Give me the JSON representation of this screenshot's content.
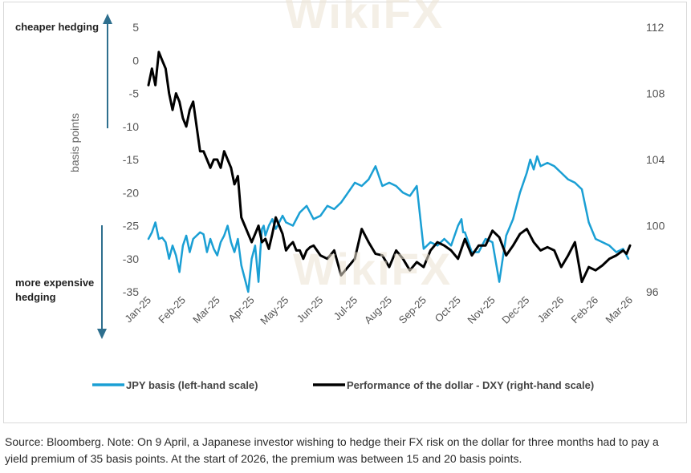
{
  "chart_data": {
    "type": "line",
    "annotations": {
      "top": "cheaper hedging",
      "bottom_line1": "more expensive",
      "bottom_line2": "hedging"
    },
    "ylabel_left": "basis points",
    "left_axis": {
      "min": -35,
      "max": 5,
      "ticks": [
        5,
        0,
        -5,
        -10,
        -15,
        -20,
        -25,
        -30,
        -35
      ]
    },
    "right_axis": {
      "min": 96,
      "max": 112,
      "ticks": [
        112,
        108,
        104,
        100,
        96
      ]
    },
    "x_labels": [
      "Jan-25",
      "Feb-25",
      "Mar-25",
      "Apr-25",
      "May-25",
      "Jun-25",
      "Jul-25",
      "Aug-25",
      "Sep-25",
      "Oct-25",
      "Nov-25",
      "Dec-25",
      "Jan-26",
      "Feb-26",
      "Mar-26"
    ],
    "x_range": [
      0,
      14
    ],
    "series": [
      {
        "name": "JPY basis (left-hand scale)",
        "axis": "left",
        "color": "#1a9fd4",
        "x": [
          0,
          0.1,
          0.2,
          0.3,
          0.4,
          0.5,
          0.6,
          0.7,
          0.8,
          0.9,
          1.0,
          1.1,
          1.2,
          1.3,
          1.4,
          1.5,
          1.6,
          1.7,
          1.8,
          1.9,
          2.0,
          2.1,
          2.2,
          2.3,
          2.4,
          2.5,
          2.6,
          2.7,
          2.8,
          2.9,
          3.0,
          3.1,
          3.2,
          3.25,
          3.3,
          3.35,
          3.4,
          3.5,
          3.6,
          3.7,
          3.8,
          3.9,
          4.0,
          4.2,
          4.4,
          4.6,
          4.8,
          5.0,
          5.2,
          5.4,
          5.6,
          5.8,
          6.0,
          6.2,
          6.4,
          6.6,
          6.8,
          7.0,
          7.2,
          7.4,
          7.6,
          7.8,
          8.0,
          8.2,
          8.4,
          8.6,
          8.8,
          9.0,
          9.1,
          9.15,
          9.2,
          9.4,
          9.6,
          9.8,
          10.0,
          10.2,
          10.4,
          10.6,
          10.8,
          11.0,
          11.1,
          11.2,
          11.3,
          11.4,
          11.6,
          11.8,
          12.0,
          12.2,
          12.4,
          12.6,
          12.8,
          13.0,
          13.2,
          13.4,
          13.6,
          13.8,
          13.95
        ],
        "values": [
          -27,
          -26,
          -24.5,
          -27,
          -26.8,
          -27.5,
          -30,
          -28,
          -29.5,
          -32,
          -28,
          -26.5,
          -29,
          -27,
          -26.5,
          -26,
          -26.3,
          -29,
          -27,
          -28.5,
          -29.5,
          -27.5,
          -26.5,
          -25,
          -27.5,
          -29,
          -27,
          -31,
          -33,
          -35,
          -30,
          -28,
          -33.5,
          -29,
          -25.5,
          -25,
          -26.5,
          -25,
          -24,
          -25.5,
          -24.5,
          -23.5,
          -24.5,
          -25,
          -23,
          -22,
          -24,
          -23.5,
          -22,
          -22.5,
          -21.5,
          -20,
          -18.5,
          -19,
          -18,
          -16,
          -19,
          -18.5,
          -19,
          -20,
          -20.5,
          -19,
          -28.5,
          -27.5,
          -28,
          -27,
          -28,
          -25,
          -24,
          -26,
          -26,
          -29,
          -29,
          -27,
          -27.5,
          -33.5,
          -26.5,
          -24,
          -20,
          -17,
          -15,
          -16.5,
          -14.5,
          -16,
          -15.5,
          -16,
          -17,
          -18,
          -18.5,
          -19.5,
          -24.5,
          -27,
          -27.5,
          -28,
          -29,
          -28.5,
          -30
        ]
      },
      {
        "name": "Performance of the dollar - DXY (right-hand scale)",
        "axis": "right",
        "color": "#000000",
        "x": [
          0,
          0.1,
          0.2,
          0.3,
          0.4,
          0.5,
          0.6,
          0.7,
          0.8,
          0.9,
          1.0,
          1.1,
          1.2,
          1.3,
          1.4,
          1.5,
          1.6,
          1.7,
          1.8,
          1.9,
          2.0,
          2.1,
          2.2,
          2.3,
          2.4,
          2.5,
          2.6,
          2.7,
          2.8,
          2.9,
          3.0,
          3.1,
          3.2,
          3.3,
          3.4,
          3.5,
          3.6,
          3.7,
          3.8,
          3.9,
          4.0,
          4.1,
          4.2,
          4.3,
          4.4,
          4.5,
          4.6,
          4.7,
          4.8,
          4.9,
          5.0,
          5.2,
          5.4,
          5.6,
          5.8,
          6.0,
          6.2,
          6.4,
          6.6,
          6.8,
          7.0,
          7.2,
          7.4,
          7.6,
          7.8,
          8.0,
          8.2,
          8.4,
          8.6,
          8.8,
          9.0,
          9.2,
          9.4,
          9.6,
          9.8,
          10.0,
          10.2,
          10.4,
          10.6,
          10.8,
          11.0,
          11.2,
          11.4,
          11.6,
          11.8,
          12.0,
          12.2,
          12.4,
          12.6,
          12.8,
          13.0,
          13.2,
          13.4,
          13.6,
          13.8,
          13.9,
          14.0
        ],
        "values": [
          108.5,
          109.5,
          108.5,
          110.5,
          110,
          109.5,
          108,
          107,
          108,
          107.5,
          106.5,
          106,
          107,
          107.5,
          106,
          104.5,
          104.5,
          104,
          103.5,
          104,
          104,
          103.5,
          104.5,
          104,
          103.5,
          102.5,
          103,
          100.5,
          100,
          99.5,
          99,
          99.5,
          100,
          99,
          99.2,
          98.6,
          99.5,
          100.5,
          100,
          99.5,
          98.5,
          98.8,
          99,
          98.5,
          98.5,
          98,
          98.5,
          98.7,
          98.8,
          98.5,
          98.2,
          98,
          98.5,
          97,
          97.5,
          98,
          99.8,
          99,
          98.3,
          98.2,
          97.5,
          98.5,
          98,
          97.3,
          97.8,
          97.5,
          98.5,
          99,
          98.8,
          98.5,
          98,
          99.2,
          98.2,
          98.8,
          98.8,
          99.7,
          99.3,
          98.2,
          98.8,
          99.5,
          99.8,
          99,
          98.5,
          98.7,
          98.5,
          97.5,
          98.2,
          99,
          96.6,
          97.5,
          97.3,
          97.6,
          98,
          98.2,
          98.5,
          98.3,
          98.8
        ]
      }
    ],
    "legend": {
      "placement": "bottom"
    }
  },
  "source_note": "Source: Bloomberg. Note: On 9 April, a Japanese investor wishing to hedge their FX risk on the dollar for three months had to pay a yield premium of 35 basis points. At the start of 2026, the premium was between 15 and 20 basis points.",
  "watermark_text": "WikiFX"
}
